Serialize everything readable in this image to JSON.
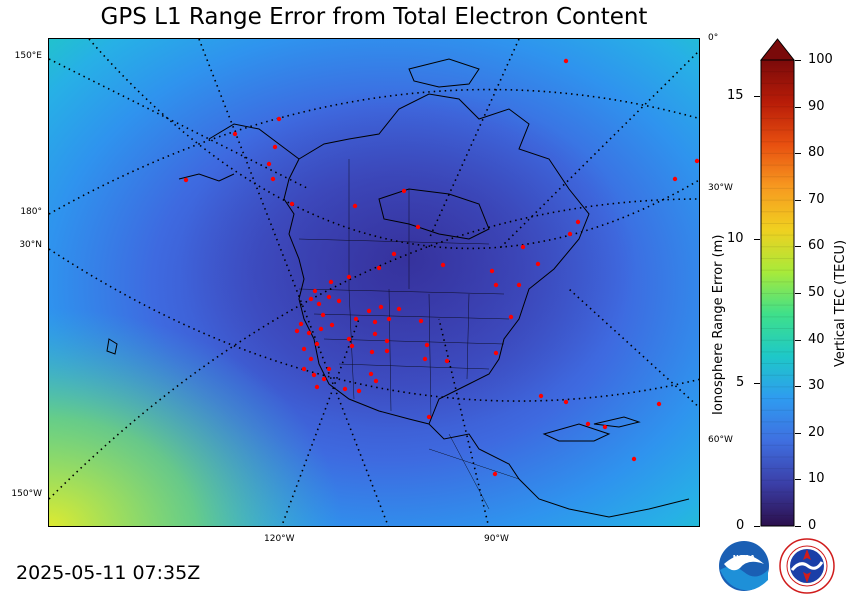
{
  "title": "GPS L1 Range Error from Total Electron Content",
  "timestamp": "2025-05-11 07:35Z",
  "map": {
    "graticule_labels": {
      "top_right": "0°",
      "right_1": "30°W",
      "right_2": "60°W",
      "left_1": "150°E",
      "left_2": "180°",
      "left_3": "30°N",
      "left_4": "150°W",
      "bottom_1": "120°W",
      "bottom_2": "90°W"
    },
    "station_marker_color": "#ff0000",
    "coastline_color": "#000000"
  },
  "colorbar": {
    "left_axis_label": "Ionosphere Range Error (m)",
    "right_axis_label": "Vertical TEC (TECU)",
    "left_ticks": [
      "0",
      "5",
      "10",
      "15"
    ],
    "right_ticks": [
      "0",
      "10",
      "20",
      "30",
      "40",
      "50",
      "60",
      "70",
      "80",
      "90",
      "100"
    ],
    "colors_low_to_high": [
      "#2b0f4c",
      "#3b3fa8",
      "#3f6fe0",
      "#2f9bf0",
      "#1ec8c8",
      "#3fe08a",
      "#a8ea3a",
      "#f0d020",
      "#f79a20",
      "#e85010",
      "#b81c08",
      "#7a0a0a"
    ]
  },
  "logos": {
    "noaa": "NOAA",
    "nws": "NATIONAL WEATHER SERVICE"
  }
}
